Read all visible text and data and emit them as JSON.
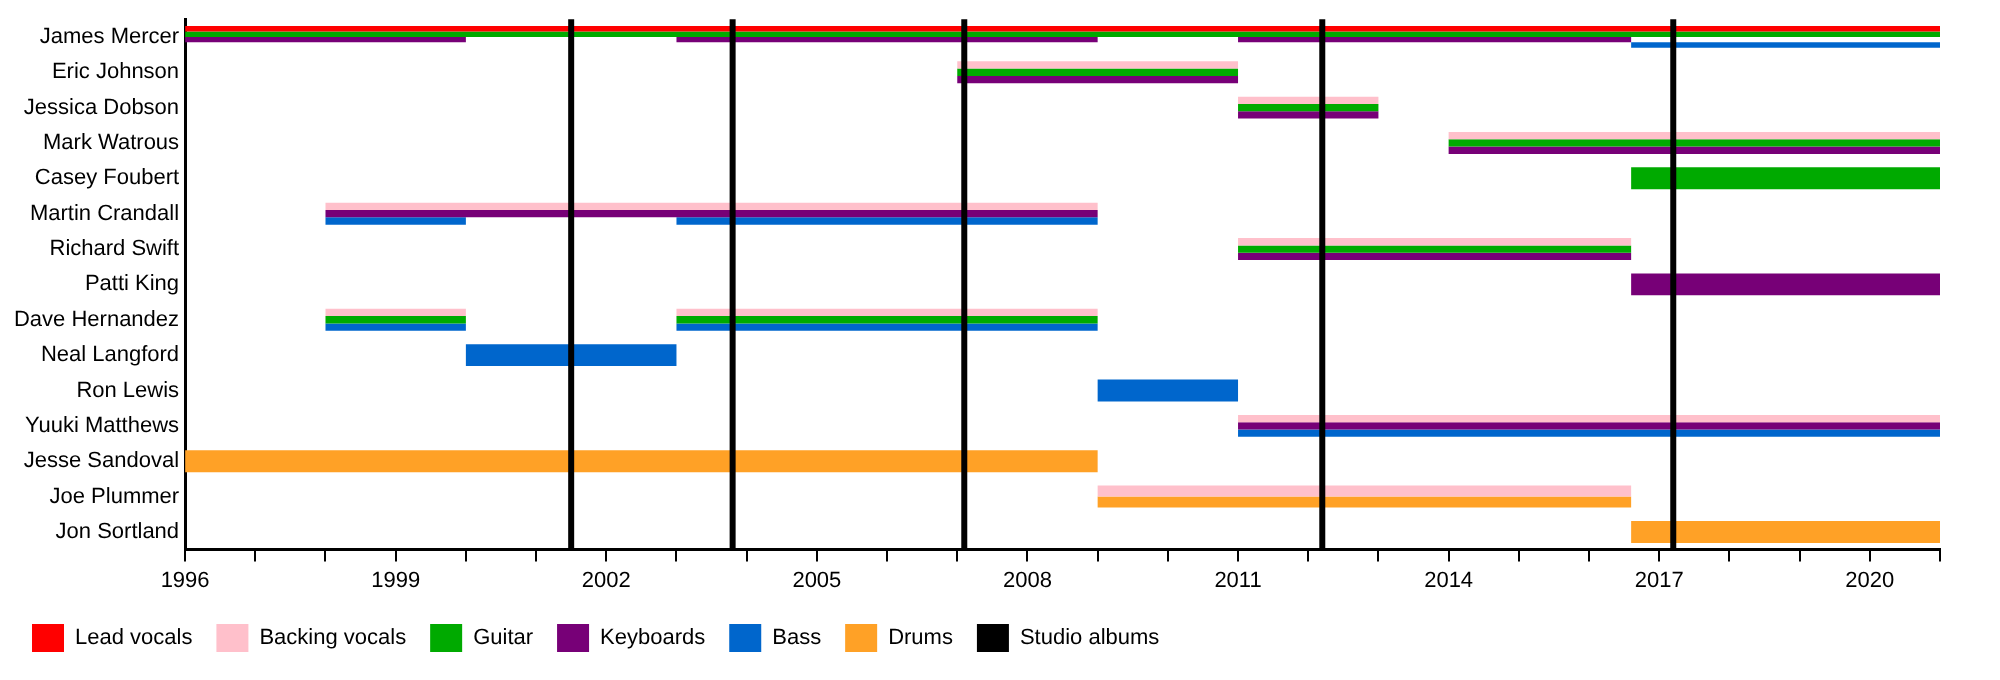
{
  "chart_data": {
    "type": "bar",
    "orientation": "horizontal",
    "categories": [
      "James Mercer",
      "Eric Johnson",
      "Jessica Dobson",
      "Mark Watrous",
      "Casey Foubert",
      "Martin Crandall",
      "Richard Swift",
      "Patti King",
      "Dave Hernandez",
      "Neal Langford",
      "Ron Lewis",
      "Yuuki Matthews",
      "Jesse Sandoval",
      "Joe Plummer",
      "Jon Sortland"
    ],
    "series": [
      {
        "name": "Lead vocals",
        "color": "#ff0000",
        "base": [
          1996,
          null,
          null,
          null,
          null,
          null,
          null,
          null,
          null,
          null,
          null,
          null,
          null,
          null,
          null
        ],
        "values": [
          25,
          null,
          null,
          null,
          null,
          null,
          null,
          null,
          null,
          null,
          null,
          null,
          null,
          null,
          null
        ]
      },
      {
        "name": "Backing vocals",
        "color": "#ffc0cb",
        "base": [
          null,
          2007,
          2011,
          2014,
          null,
          1998,
          2011,
          null,
          1998,
          null,
          null,
          2011,
          null,
          2009,
          null
        ],
        "values": [
          null,
          4,
          2,
          7,
          null,
          11,
          5.6,
          null,
          2,
          null,
          null,
          10,
          null,
          7.6,
          null
        ]
      },
      {
        "name": "Guitar",
        "color": "#00aa00",
        "base": [
          1996,
          2007,
          2011,
          2014,
          2016.6,
          null,
          2011,
          null,
          1998,
          null,
          null,
          null,
          null,
          null,
          null
        ],
        "values": [
          25,
          4,
          2,
          7,
          4.4,
          null,
          5.6,
          null,
          2,
          null,
          null,
          null,
          null,
          null,
          null
        ]
      },
      {
        "name": "Keyboards",
        "color": "#770077",
        "base": [
          1996,
          2007,
          2011,
          2014,
          null,
          1998,
          2011,
          2016.6,
          null,
          null,
          null,
          2011,
          null,
          null,
          null
        ],
        "values": [
          4,
          4,
          2,
          7,
          null,
          11,
          5.6,
          4.4,
          null,
          null,
          null,
          10,
          null,
          null,
          null
        ]
      },
      {
        "name": "Bass",
        "color": "#0066cc",
        "base": [
          2016.6,
          null,
          null,
          null,
          null,
          1998,
          null,
          null,
          1998,
          2000,
          2009,
          2011,
          null,
          null,
          null
        ],
        "values": [
          4.4,
          null,
          null,
          null,
          null,
          2,
          null,
          null,
          2,
          3,
          2,
          10,
          null,
          null,
          null
        ]
      },
      {
        "name": "Drums",
        "color": "#ffa126",
        "base": [
          null,
          null,
          null,
          null,
          null,
          null,
          null,
          null,
          null,
          null,
          null,
          null,
          1996,
          2009,
          2016.6
        ],
        "values": [
          null,
          null,
          null,
          null,
          null,
          null,
          null,
          null,
          null,
          null,
          null,
          null,
          13,
          7.6,
          4.4
        ]
      },
      {
        "color": "#ffc0cb",
        "base": [
          null,
          null,
          null,
          null,
          null,
          null,
          null,
          null,
          2003,
          null,
          null,
          null,
          null,
          null,
          null
        ],
        "values": [
          null,
          null,
          null,
          null,
          null,
          null,
          null,
          null,
          6,
          null,
          null,
          null,
          null,
          null,
          null
        ]
      },
      {
        "color": "#00aa00",
        "base": [
          null,
          null,
          null,
          null,
          null,
          null,
          null,
          null,
          2003,
          null,
          null,
          null,
          null,
          null,
          null
        ],
        "values": [
          null,
          null,
          null,
          null,
          null,
          null,
          null,
          null,
          6,
          null,
          null,
          null,
          null,
          null,
          null
        ]
      },
      {
        "color": "#770077",
        "base": [
          2003,
          null,
          null,
          null,
          null,
          null,
          null,
          null,
          null,
          null,
          null,
          null,
          null,
          null,
          null
        ],
        "values": [
          6,
          null,
          null,
          null,
          null,
          null,
          null,
          null,
          null,
          null,
          null,
          null,
          null,
          null,
          null
        ]
      },
      {
        "color": "#770077",
        "base": [
          2011,
          null,
          null,
          null,
          null,
          null,
          null,
          null,
          null,
          null,
          null,
          null,
          null,
          null,
          null
        ],
        "values": [
          5.6,
          null,
          null,
          null,
          null,
          null,
          null,
          null,
          null,
          null,
          null,
          null,
          null,
          null,
          null
        ]
      },
      {
        "color": "#0066cc",
        "base": [
          null,
          null,
          null,
          null,
          null,
          2003,
          null,
          null,
          2003,
          null,
          null,
          null,
          null,
          null,
          null
        ],
        "values": [
          null,
          null,
          null,
          null,
          null,
          6,
          null,
          null,
          6,
          null,
          null,
          null,
          null,
          null,
          null
        ]
      }
    ],
    "ref_lines": [
      {
        "axis": "x",
        "value": 2001.5,
        "label": "Studio albums",
        "color": "#000000"
      },
      {
        "axis": "x",
        "value": 2003.8,
        "color": "#000000"
      },
      {
        "axis": "x",
        "value": 2007.1,
        "color": "#000000"
      },
      {
        "axis": "x",
        "value": 2012.2,
        "color": "#000000"
      },
      {
        "axis": "x",
        "value": 2017.2,
        "color": "#000000"
      }
    ],
    "xlim": [
      1996,
      2021
    ],
    "xticks": [
      1996,
      {
        "value": 1997,
        "label": null
      },
      {
        "value": 1998,
        "label": null
      },
      1999,
      {
        "value": 2000,
        "label": null
      },
      {
        "value": 2001,
        "label": null
      },
      2002,
      {
        "value": 2003,
        "label": null
      },
      {
        "value": 2004,
        "label": null
      },
      2005,
      {
        "value": 2006,
        "label": null
      },
      {
        "value": 2007,
        "label": null
      },
      2008,
      {
        "value": 2009,
        "label": null
      },
      {
        "value": 2010,
        "label": null
      },
      2011,
      {
        "value": 2012,
        "label": null
      },
      {
        "value": 2013,
        "label": null
      },
      2014,
      {
        "value": 2015,
        "label": null
      },
      {
        "value": 2016,
        "label": null
      },
      2017,
      {
        "value": 2018,
        "label": null
      },
      {
        "value": 2019,
        "label": null
      },
      2020,
      {
        "value": 2021,
        "label": null
      }
    ],
    "grid": false,
    "legend": "bottom left"
  }
}
